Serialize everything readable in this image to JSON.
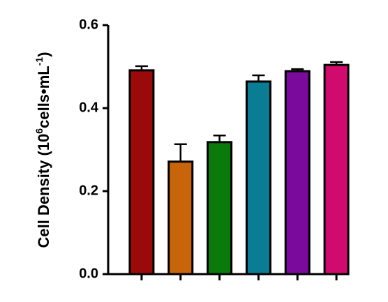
{
  "chart_data": {
    "type": "bar",
    "ylabel": [
      "Cell Density (10",
      "6",
      "cells•mL",
      "-1",
      ")"
    ],
    "categories": [
      null,
      null,
      null,
      null,
      null,
      null
    ],
    "values": [
      0.491,
      0.271,
      0.318,
      0.464,
      0.489,
      0.504
    ],
    "errors": [
      0.01,
      0.042,
      0.016,
      0.015,
      0.005,
      0.007
    ],
    "colors": [
      "#9b0a0a",
      "#c8650a",
      "#0a7a0a",
      "#0a7d95",
      "#7a0a9b",
      "#d10a6e"
    ],
    "ylim": [
      0,
      0.6
    ],
    "yticks": [
      {
        "value": 0,
        "label": "0.0"
      },
      0.2,
      0.4,
      0.6
    ],
    "grid": false
  }
}
